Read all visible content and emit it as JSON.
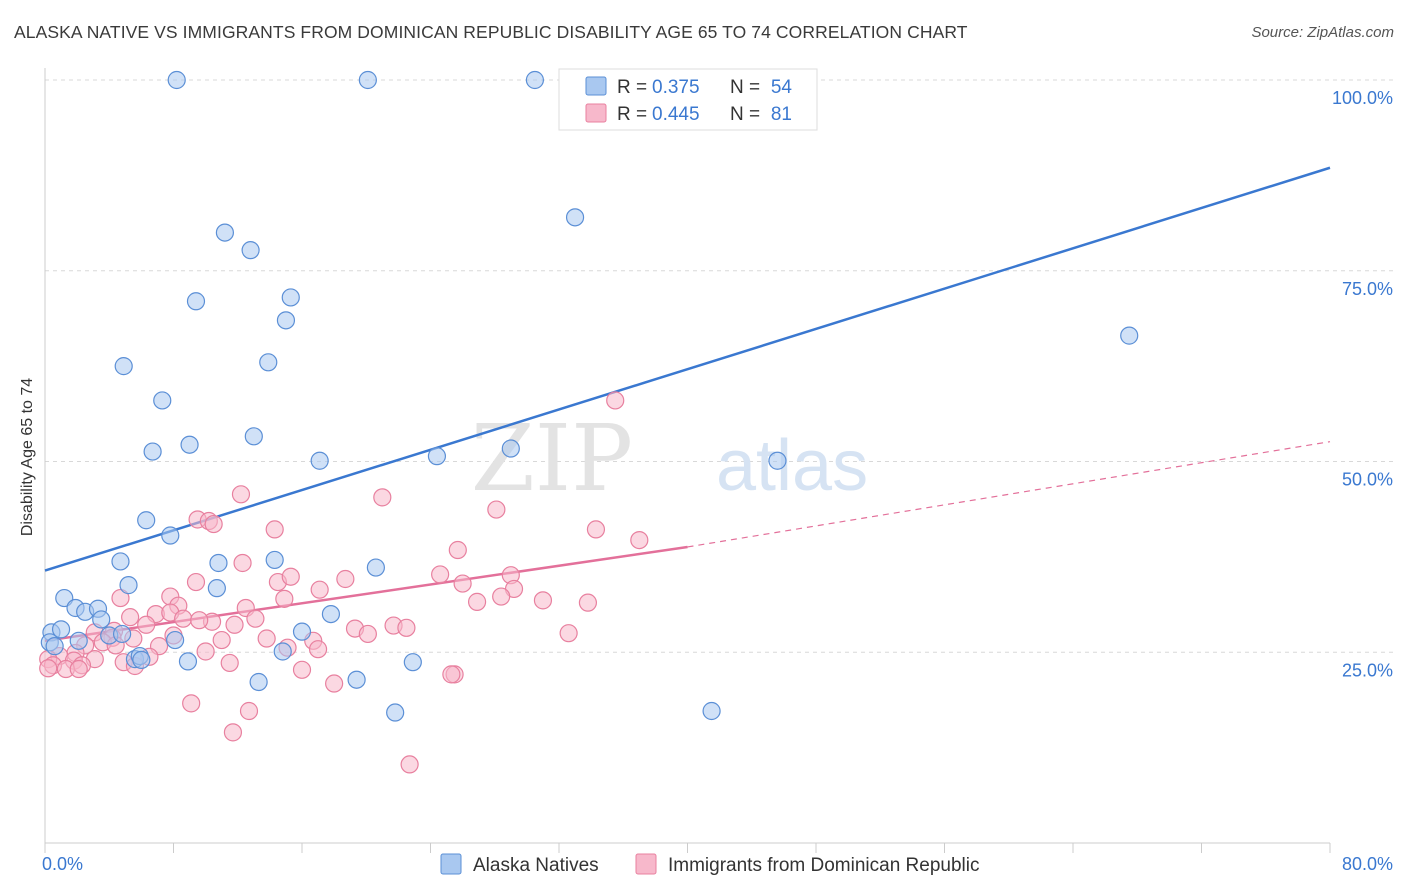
{
  "title": "ALASKA NATIVE VS IMMIGRANTS FROM DOMINICAN REPUBLIC DISABILITY AGE 65 TO 74 CORRELATION CHART",
  "source": "Source: ZipAtlas.com",
  "watermark": {
    "zip": "ZIP",
    "atlas": "atlas"
  },
  "colors": {
    "blue_fill": "#a9c8f0",
    "blue_stroke": "#5b8fd6",
    "blue_line": "#3a78d0",
    "pink_fill": "#f7b8cb",
    "pink_stroke": "#e8809f",
    "pink_line": "#e3709a",
    "axis_text": "#3a78d0",
    "grid": "#d8d8d8"
  },
  "stats_legend": {
    "rows": [
      {
        "r_label": "R =",
        "r_value": "0.375",
        "n_label": "N =",
        "n_value": "54"
      },
      {
        "r_label": "R =",
        "r_value": "0.445",
        "n_label": "N =",
        "n_value": "81"
      }
    ]
  },
  "chart_data": {
    "type": "scatter",
    "title": "ALASKA NATIVE VS IMMIGRANTS FROM DOMINICAN REPUBLIC DISABILITY AGE 65 TO 74 CORRELATION CHART",
    "xlabel": "",
    "ylabel": "Disability Age 65 to 74",
    "xlim": [
      0,
      80
    ],
    "ylim": [
      0,
      100
    ],
    "x_tick_labels": [
      "0.0%",
      "80.0%"
    ],
    "y_tick_labels": [
      "100.0%",
      "75.0%",
      "50.0%",
      "25.0%"
    ],
    "y_ticks": [
      100,
      75,
      50,
      25
    ],
    "grid": true,
    "legend_position": "bottom",
    "series": [
      {
        "name": "Alaska Natives",
        "r": 0.375,
        "n": 54,
        "trend": {
          "x": [
            0,
            80
          ],
          "y": [
            35.7,
            88.5
          ],
          "dashed_after": null
        },
        "points": [
          [
            8.2,
            100
          ],
          [
            20.1,
            100
          ],
          [
            30.5,
            100
          ],
          [
            37,
            100
          ],
          [
            33,
            82
          ],
          [
            11.2,
            80
          ],
          [
            12.8,
            77.7
          ],
          [
            9.4,
            71
          ],
          [
            15.3,
            71.5
          ],
          [
            15,
            68.5
          ],
          [
            4.9,
            62.5
          ],
          [
            13.9,
            63
          ],
          [
            7.3,
            58
          ],
          [
            67.5,
            66.5
          ],
          [
            6.7,
            51.3
          ],
          [
            9,
            52.2
          ],
          [
            13,
            53.3
          ],
          [
            17.1,
            50.1
          ],
          [
            24.4,
            50.7
          ],
          [
            29,
            51.7
          ],
          [
            45.6,
            50.1
          ],
          [
            6.3,
            42.3
          ],
          [
            7.8,
            40.3
          ],
          [
            4.7,
            36.9
          ],
          [
            10.8,
            36.7
          ],
          [
            14.3,
            37.1
          ],
          [
            20.6,
            36.1
          ],
          [
            5.2,
            33.8
          ],
          [
            10.7,
            33.4
          ],
          [
            1.2,
            32.1
          ],
          [
            1.9,
            30.8
          ],
          [
            2.5,
            30.3
          ],
          [
            3.3,
            30.7
          ],
          [
            3.5,
            29.3
          ],
          [
            17.8,
            30
          ],
          [
            0.4,
            27.6
          ],
          [
            1,
            28
          ],
          [
            2.1,
            26.5
          ],
          [
            4,
            27.2
          ],
          [
            4.8,
            27.4
          ],
          [
            8.1,
            26.6
          ],
          [
            16,
            27.7
          ],
          [
            0.3,
            26.3
          ],
          [
            5.6,
            24.1
          ],
          [
            5.9,
            24.5
          ],
          [
            8.9,
            23.8
          ],
          [
            14.8,
            25.1
          ],
          [
            22.9,
            23.7
          ],
          [
            13.3,
            21.1
          ],
          [
            19.4,
            21.4
          ],
          [
            21.8,
            17.1
          ],
          [
            41.5,
            17.3
          ],
          [
            0.6,
            25.8
          ],
          [
            6,
            24
          ]
        ]
      },
      {
        "name": "Immigrants from Dominican Republic",
        "r": 0.445,
        "n": 81,
        "trend": {
          "x": [
            0,
            40
          ],
          "y": [
            26.5,
            38.8
          ],
          "dashed_to": {
            "x": 80,
            "y": 52.6
          }
        },
        "points": [
          [
            35.5,
            58
          ],
          [
            12.2,
            45.7
          ],
          [
            21,
            45.3
          ],
          [
            28.1,
            43.7
          ],
          [
            9.5,
            42.4
          ],
          [
            10.2,
            42.2
          ],
          [
            10.5,
            41.8
          ],
          [
            14.3,
            41.1
          ],
          [
            34.3,
            41.1
          ],
          [
            37,
            39.7
          ],
          [
            25.7,
            38.4
          ],
          [
            12.3,
            36.7
          ],
          [
            24.6,
            35.2
          ],
          [
            29,
            35.1
          ],
          [
            14.5,
            34.2
          ],
          [
            18.7,
            34.6
          ],
          [
            9.4,
            34.2
          ],
          [
            15.3,
            34.9
          ],
          [
            26,
            34
          ],
          [
            29.2,
            33.3
          ],
          [
            17.1,
            33.2
          ],
          [
            4.7,
            32.1
          ],
          [
            7.8,
            32.3
          ],
          [
            14.9,
            32
          ],
          [
            28.4,
            32.3
          ],
          [
            31,
            31.8
          ],
          [
            33.8,
            31.5
          ],
          [
            26.9,
            31.6
          ],
          [
            8.3,
            31.1
          ],
          [
            12.5,
            30.8
          ],
          [
            6.9,
            30
          ],
          [
            7.8,
            30.2
          ],
          [
            8.6,
            29.4
          ],
          [
            5.3,
            29.6
          ],
          [
            10.4,
            29
          ],
          [
            13.1,
            29.4
          ],
          [
            11.8,
            28.6
          ],
          [
            9.6,
            29.2
          ],
          [
            6.3,
            28.6
          ],
          [
            21.7,
            28.5
          ],
          [
            22.5,
            28.2
          ],
          [
            19.3,
            28.1
          ],
          [
            20.1,
            27.4
          ],
          [
            32.6,
            27.5
          ],
          [
            4.3,
            27.8
          ],
          [
            3.1,
            27.6
          ],
          [
            4.2,
            26.9
          ],
          [
            5.5,
            26.8
          ],
          [
            11,
            26.6
          ],
          [
            8,
            27.2
          ],
          [
            13.8,
            26.8
          ],
          [
            16.7,
            26.5
          ],
          [
            3.6,
            26.3
          ],
          [
            4.4,
            25.9
          ],
          [
            2.5,
            25.9
          ],
          [
            15.1,
            25.6
          ],
          [
            17,
            25.4
          ],
          [
            1.9,
            24.9
          ],
          [
            7.1,
            25.8
          ],
          [
            10,
            25.1
          ],
          [
            6.5,
            24.4
          ],
          [
            3.1,
            24.1
          ],
          [
            0.9,
            24.5
          ],
          [
            0.2,
            24.1
          ],
          [
            1.8,
            23.9
          ],
          [
            2.3,
            23.3
          ],
          [
            4.9,
            23.7
          ],
          [
            5.6,
            23.2
          ],
          [
            11.5,
            23.6
          ],
          [
            0.5,
            23.3
          ],
          [
            1.3,
            22.8
          ],
          [
            0.2,
            22.9
          ],
          [
            2.1,
            22.8
          ],
          [
            16,
            22.7
          ],
          [
            25.5,
            22.1
          ],
          [
            18,
            20.9
          ],
          [
            25.3,
            22.1
          ],
          [
            9.1,
            18.3
          ],
          [
            12.7,
            17.3
          ],
          [
            11.7,
            14.5
          ],
          [
            22.7,
            10.3
          ]
        ]
      }
    ]
  }
}
